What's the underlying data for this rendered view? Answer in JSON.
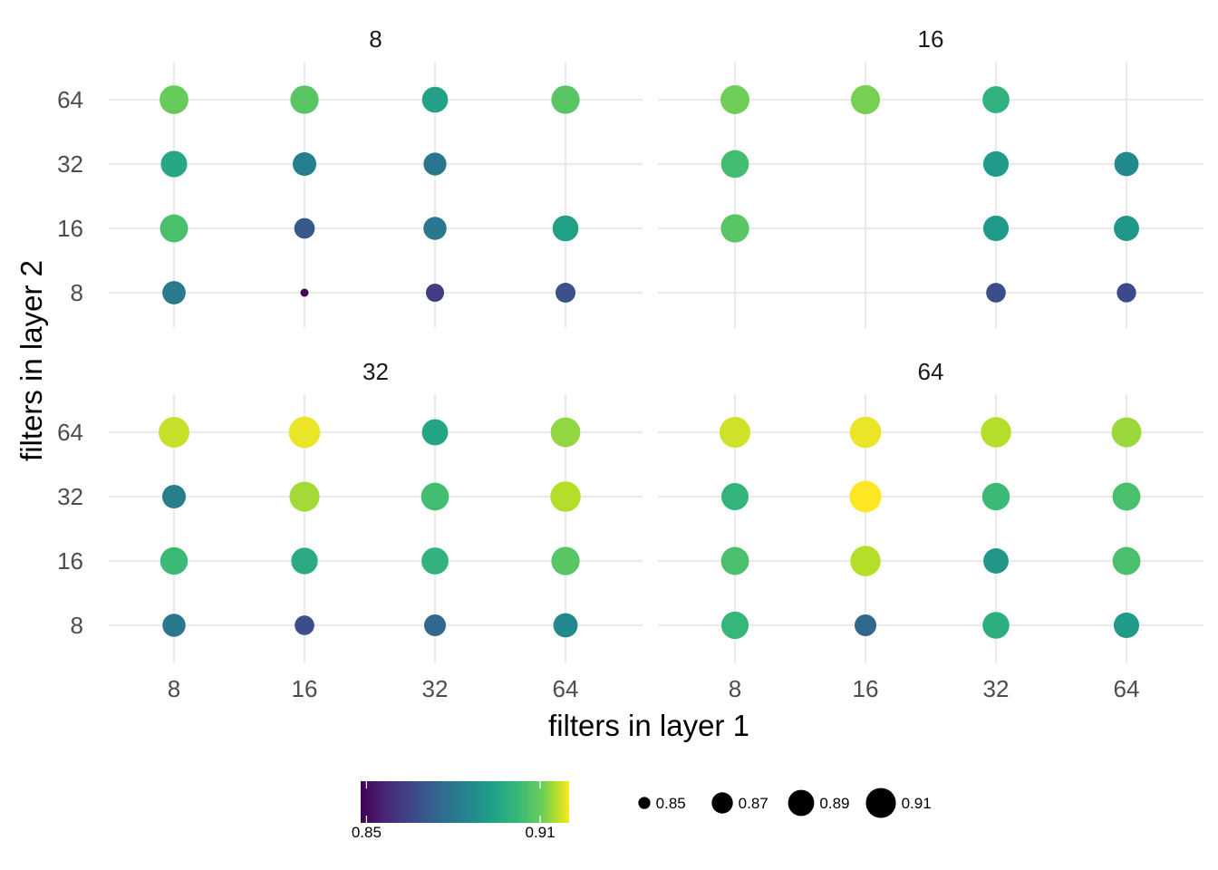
{
  "chart_data": {
    "type": "scatter",
    "xlabel": "filters in layer 1",
    "ylabel": "filters in layer 2",
    "x_ticks": [
      8,
      16,
      32,
      64
    ],
    "y_ticks": [
      8,
      16,
      32,
      64
    ],
    "x_scale": "log2 (categorical levels)",
    "y_scale": "log2 (categorical levels)",
    "grid": true,
    "legend_position": "bottom",
    "color_scale": "viridis",
    "size_and_color_variable_range": [
      0.848,
      0.92
    ],
    "colorbar_ticks": [
      "0.85",
      "0.91"
    ],
    "size_legend": [
      "0.85",
      "0.87",
      "0.89",
      "0.91"
    ],
    "panels": [
      {
        "strip": "8",
        "points": [
          {
            "x": 8,
            "y": 64,
            "value": 0.903
          },
          {
            "x": 16,
            "y": 64,
            "value": 0.901
          },
          {
            "x": 32,
            "y": 64,
            "value": 0.889
          },
          {
            "x": 64,
            "y": 64,
            "value": 0.901
          },
          {
            "x": 8,
            "y": 32,
            "value": 0.891
          },
          {
            "x": 16,
            "y": 32,
            "value": 0.879
          },
          {
            "x": 32,
            "y": 32,
            "value": 0.876
          },
          {
            "x": 8,
            "y": 16,
            "value": 0.899
          },
          {
            "x": 16,
            "y": 16,
            "value": 0.868
          },
          {
            "x": 32,
            "y": 16,
            "value": 0.877
          },
          {
            "x": 64,
            "y": 16,
            "value": 0.889
          },
          {
            "x": 8,
            "y": 8,
            "value": 0.878
          },
          {
            "x": 16,
            "y": 8,
            "value": 0.848
          },
          {
            "x": 32,
            "y": 8,
            "value": 0.861
          },
          {
            "x": 64,
            "y": 8,
            "value": 0.866
          }
        ]
      },
      {
        "strip": "16",
        "points": [
          {
            "x": 8,
            "y": 64,
            "value": 0.904
          },
          {
            "x": 16,
            "y": 64,
            "value": 0.905
          },
          {
            "x": 32,
            "y": 64,
            "value": 0.894
          },
          {
            "x": 8,
            "y": 32,
            "value": 0.898
          },
          {
            "x": 32,
            "y": 32,
            "value": 0.887
          },
          {
            "x": 64,
            "y": 32,
            "value": 0.882
          },
          {
            "x": 8,
            "y": 16,
            "value": 0.901
          },
          {
            "x": 32,
            "y": 16,
            "value": 0.887
          },
          {
            "x": 64,
            "y": 16,
            "value": 0.886
          },
          {
            "x": 32,
            "y": 8,
            "value": 0.865
          },
          {
            "x": 64,
            "y": 8,
            "value": 0.864
          }
        ]
      },
      {
        "strip": "32",
        "points": [
          {
            "x": 8,
            "y": 64,
            "value": 0.914
          },
          {
            "x": 16,
            "y": 64,
            "value": 0.918
          },
          {
            "x": 32,
            "y": 64,
            "value": 0.89
          },
          {
            "x": 64,
            "y": 64,
            "value": 0.908
          },
          {
            "x": 8,
            "y": 32,
            "value": 0.879
          },
          {
            "x": 16,
            "y": 32,
            "value": 0.91
          },
          {
            "x": 32,
            "y": 32,
            "value": 0.898
          },
          {
            "x": 64,
            "y": 32,
            "value": 0.912
          },
          {
            "x": 8,
            "y": 16,
            "value": 0.897
          },
          {
            "x": 16,
            "y": 16,
            "value": 0.892
          },
          {
            "x": 32,
            "y": 16,
            "value": 0.894
          },
          {
            "x": 64,
            "y": 16,
            "value": 0.901
          },
          {
            "x": 8,
            "y": 8,
            "value": 0.877
          },
          {
            "x": 16,
            "y": 8,
            "value": 0.865
          },
          {
            "x": 32,
            "y": 8,
            "value": 0.872
          },
          {
            "x": 64,
            "y": 8,
            "value": 0.882
          }
        ]
      },
      {
        "strip": "64",
        "points": [
          {
            "x": 8,
            "y": 64,
            "value": 0.915
          },
          {
            "x": 16,
            "y": 64,
            "value": 0.918
          },
          {
            "x": 32,
            "y": 64,
            "value": 0.912
          },
          {
            "x": 64,
            "y": 64,
            "value": 0.909
          },
          {
            "x": 8,
            "y": 32,
            "value": 0.895
          },
          {
            "x": 16,
            "y": 32,
            "value": 0.92
          },
          {
            "x": 32,
            "y": 32,
            "value": 0.897
          },
          {
            "x": 64,
            "y": 32,
            "value": 0.899
          },
          {
            "x": 8,
            "y": 16,
            "value": 0.899
          },
          {
            "x": 16,
            "y": 16,
            "value": 0.912
          },
          {
            "x": 32,
            "y": 16,
            "value": 0.886
          },
          {
            "x": 64,
            "y": 16,
            "value": 0.899
          },
          {
            "x": 8,
            "y": 8,
            "value": 0.896
          },
          {
            "x": 16,
            "y": 8,
            "value": 0.872
          },
          {
            "x": 32,
            "y": 8,
            "value": 0.893
          },
          {
            "x": 64,
            "y": 8,
            "value": 0.887
          }
        ]
      }
    ]
  }
}
